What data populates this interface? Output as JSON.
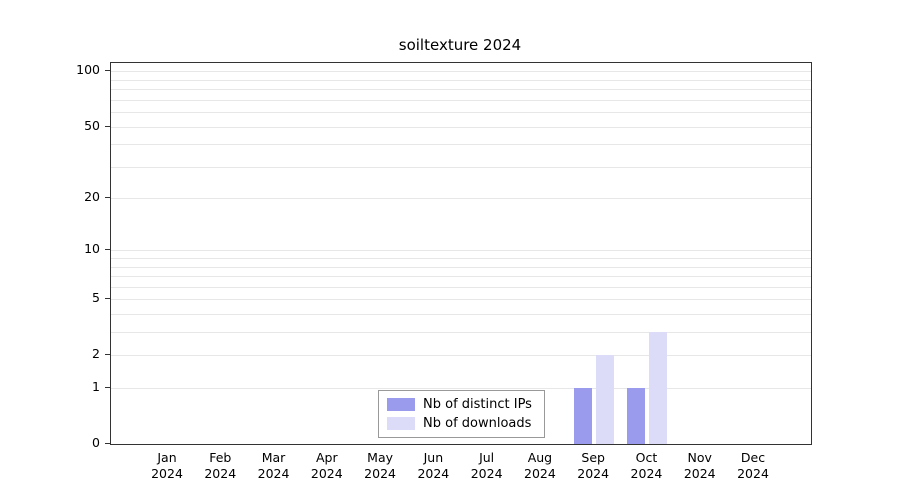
{
  "chart_data": {
    "type": "bar",
    "title": "soiltexture 2024",
    "categories": [
      "Jan",
      "Feb",
      "Mar",
      "Apr",
      "May",
      "Jun",
      "Jul",
      "Aug",
      "Sep",
      "Oct",
      "Nov",
      "Dec"
    ],
    "category_year": "2024",
    "series": [
      {
        "name": "Nb of distinct IPs",
        "color": "#9b9bee",
        "values": [
          0,
          0,
          0,
          0,
          0,
          0,
          0,
          0,
          1,
          1,
          0,
          0
        ]
      },
      {
        "name": "Nb of downloads",
        "color": "#dcdcf8",
        "values": [
          0,
          0,
          0,
          0,
          0,
          0,
          0,
          0,
          2,
          3,
          0,
          0
        ]
      }
    ],
    "yscale": "log10(1+x)",
    "ytick_labels": [
      0,
      1,
      2,
      5,
      10,
      20,
      50,
      100
    ],
    "grid_values": [
      1,
      2,
      3,
      4,
      5,
      6,
      7,
      8,
      9,
      10,
      20,
      30,
      40,
      50,
      60,
      70,
      80,
      90,
      100
    ],
    "ylim_top_log": 2.05,
    "xlabel": "",
    "ylabel": "",
    "grid": "horizontal",
    "legend_position": "bottom-center-inside"
  }
}
